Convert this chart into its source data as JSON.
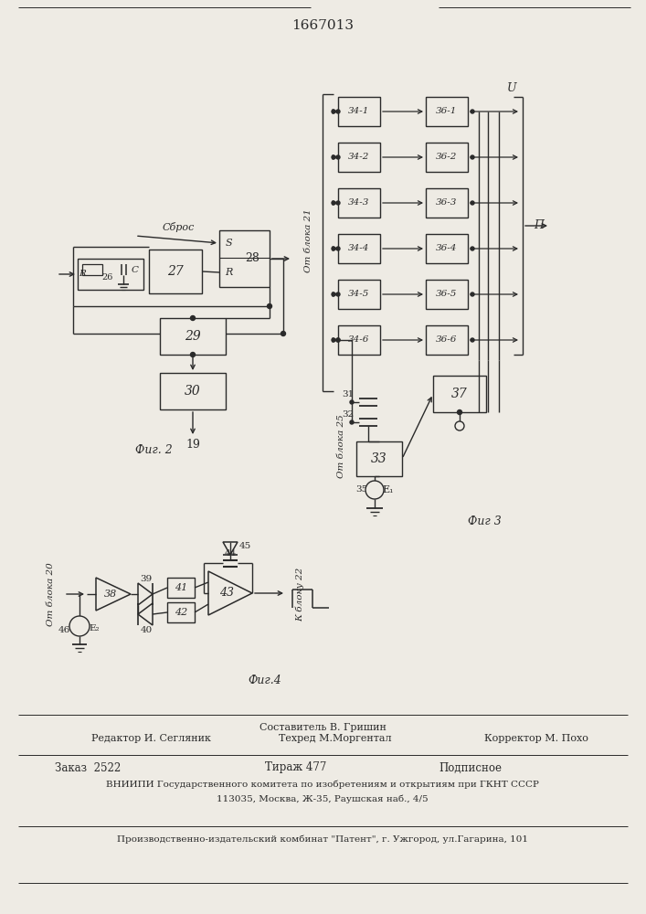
{
  "title": "1667013",
  "bg_color": "#eeebe4",
  "line_color": "#2a2a2a",
  "fig2_label": "Фиг. 2",
  "fig3_label": "Фиг 3",
  "fig4_label": "Фиг.4"
}
